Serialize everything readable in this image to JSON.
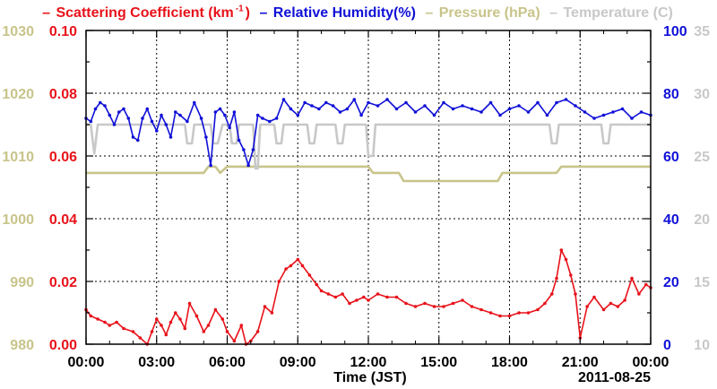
{
  "chart_data": {
    "type": "line",
    "legend": [
      {
        "label": "Scattering Coefficient (km",
        "sup": "-1",
        "tail": ")",
        "color": "#e8121a"
      },
      {
        "label": "Relative Humidity(%)",
        "color": "#1010d8"
      },
      {
        "label": "Pressure (hPa)",
        "color": "#c8c48a"
      },
      {
        "label": "Temperature (C)",
        "color": "#c8c8c8"
      }
    ],
    "xlabel": "Time (JST)",
    "date_label": "2011-08-25",
    "x_ticks": [
      "00:00",
      "03:00",
      "06:00",
      "09:00",
      "12:00",
      "15:00",
      "18:00",
      "21:00",
      "00:00"
    ],
    "xlim_hours": [
      0,
      24
    ],
    "axes": {
      "scattering": {
        "ticks": [
          "0.00",
          "0.02",
          "0.04",
          "0.06",
          "0.08",
          "0.10"
        ],
        "ylim": [
          0,
          0.1
        ],
        "color": "#e8121a"
      },
      "pressure": {
        "ticks": [
          "980",
          "990",
          "1000",
          "1010",
          "1020",
          "1030"
        ],
        "ylim": [
          980,
          1030
        ],
        "color": "#c8c48a"
      },
      "humidity": {
        "ticks": [
          "0",
          "20",
          "40",
          "60",
          "80",
          "100"
        ],
        "ylim": [
          0,
          100
        ],
        "color": "#1010d8"
      },
      "temperature": {
        "ticks": [
          "10",
          "15",
          "20",
          "25",
          "30",
          "35"
        ],
        "ylim": [
          10,
          35
        ],
        "color": "#c8c8c8"
      }
    },
    "grid": true,
    "series": [
      {
        "name": "Scattering Coefficient",
        "color": "#e8121a",
        "marker": true,
        "x": [
          0,
          0.2,
          0.5,
          0.8,
          1.0,
          1.3,
          1.6,
          2.0,
          2.3,
          2.6,
          2.8,
          3.0,
          3.2,
          3.4,
          3.6,
          3.8,
          4.0,
          4.2,
          4.4,
          4.7,
          5.0,
          5.2,
          5.5,
          5.8,
          6.0,
          6.3,
          6.6,
          6.8,
          7.0,
          7.3,
          7.6,
          7.9,
          8.2,
          8.5,
          8.7,
          9.0,
          9.2,
          9.5,
          9.8,
          10.0,
          10.3,
          10.6,
          10.9,
          11.2,
          11.5,
          11.8,
          12.0,
          12.4,
          12.8,
          13.2,
          13.6,
          14.0,
          14.4,
          14.8,
          15.2,
          15.6,
          16.0,
          16.4,
          16.8,
          17.2,
          17.6,
          18.0,
          18.4,
          18.8,
          19.2,
          19.5,
          19.8,
          20.0,
          20.2,
          20.4,
          20.6,
          20.8,
          21.0,
          21.3,
          21.6,
          22.0,
          22.3,
          22.6,
          22.9,
          23.2,
          23.5,
          23.8,
          24.0
        ],
        "y": [
          0.011,
          0.009,
          0.008,
          0.007,
          0.006,
          0.007,
          0.005,
          0.004,
          0.002,
          0.0,
          0.004,
          0.008,
          0.006,
          0.003,
          0.007,
          0.01,
          0.008,
          0.005,
          0.013,
          0.009,
          0.004,
          0.006,
          0.011,
          0.008,
          0.004,
          0.001,
          0.006,
          0.0,
          0.001,
          0.004,
          0.012,
          0.01,
          0.02,
          0.024,
          0.025,
          0.027,
          0.025,
          0.022,
          0.019,
          0.017,
          0.016,
          0.015,
          0.016,
          0.013,
          0.014,
          0.015,
          0.014,
          0.016,
          0.015,
          0.015,
          0.013,
          0.012,
          0.013,
          0.012,
          0.012,
          0.013,
          0.014,
          0.012,
          0.011,
          0.01,
          0.009,
          0.009,
          0.01,
          0.01,
          0.011,
          0.013,
          0.016,
          0.021,
          0.03,
          0.027,
          0.022,
          0.016,
          0.002,
          0.012,
          0.015,
          0.011,
          0.013,
          0.012,
          0.014,
          0.021,
          0.016,
          0.019,
          0.018
        ]
      },
      {
        "name": "Relative Humidity",
        "color": "#1010d8",
        "marker": true,
        "x": [
          0,
          0.2,
          0.4,
          0.6,
          0.8,
          1.0,
          1.2,
          1.4,
          1.6,
          1.8,
          2.0,
          2.2,
          2.4,
          2.6,
          2.8,
          3.0,
          3.2,
          3.4,
          3.6,
          3.8,
          4.0,
          4.3,
          4.6,
          4.9,
          5.1,
          5.3,
          5.5,
          5.7,
          5.9,
          6.1,
          6.3,
          6.5,
          6.7,
          6.9,
          7.1,
          7.3,
          7.5,
          7.8,
          8.1,
          8.4,
          8.7,
          9.0,
          9.3,
          9.6,
          9.9,
          10.2,
          10.5,
          10.8,
          11.1,
          11.4,
          11.7,
          12.0,
          12.4,
          12.8,
          13.2,
          13.6,
          14.0,
          14.4,
          14.8,
          15.2,
          15.6,
          16.0,
          16.4,
          16.8,
          17.2,
          17.6,
          18.0,
          18.4,
          18.8,
          19.2,
          19.6,
          20.0,
          20.4,
          20.8,
          21.2,
          21.6,
          22.0,
          22.4,
          22.8,
          23.2,
          23.6,
          24.0
        ],
        "y": [
          72,
          71,
          75,
          77,
          76,
          73,
          70,
          74,
          75,
          72,
          66,
          65,
          72,
          75,
          71,
          68,
          73,
          70,
          66,
          74,
          73,
          71,
          77,
          72,
          66,
          57,
          74,
          75,
          73,
          69,
          74,
          65,
          62,
          57,
          62,
          73,
          72,
          71,
          72,
          78,
          75,
          73,
          77,
          76,
          75,
          77,
          76,
          74,
          75,
          78,
          73,
          77,
          76,
          78,
          75,
          77,
          74,
          76,
          73,
          77,
          75,
          76,
          75,
          74,
          77,
          73,
          75,
          76,
          74,
          77,
          73,
          77,
          78,
          76,
          74,
          72,
          73,
          74,
          75,
          72,
          74,
          73
        ]
      },
      {
        "name": "Pressure",
        "color": "#c8c48a",
        "marker": false,
        "x": [
          0,
          5.0,
          5.2,
          5.5,
          5.7,
          6.0,
          12.0,
          12.2,
          13.3,
          13.5,
          17.5,
          17.7,
          20.0,
          20.2,
          24.0
        ],
        "y": [
          1007.3,
          1007.3,
          1008.3,
          1008.3,
          1007.3,
          1008.3,
          1008.3,
          1007.3,
          1007.3,
          1006.0,
          1006.0,
          1007.3,
          1007.3,
          1008.3,
          1008.3
        ]
      },
      {
        "name": "Temperature",
        "color": "#c8c8c8",
        "marker": false,
        "x": [
          0,
          0.2,
          0.35,
          0.5,
          4.2,
          4.3,
          4.5,
          4.6,
          5.3,
          5.4,
          5.6,
          5.8,
          6.1,
          6.2,
          6.4,
          6.5,
          7.1,
          7.2,
          7.3,
          7.4,
          8.0,
          8.1,
          8.3,
          8.4,
          9.4,
          9.5,
          9.7,
          9.8,
          10.6,
          10.7,
          10.9,
          11.0,
          11.9,
          12.0,
          12.2,
          12.3,
          19.7,
          19.8,
          20.0,
          20.1,
          21.9,
          22.0,
          22.2,
          22.3,
          24.0
        ],
        "y": [
          27.5,
          27.5,
          25.2,
          27.5,
          27.5,
          26.0,
          26.0,
          27.5,
          27.5,
          26.0,
          26.0,
          27.5,
          27.5,
          26.0,
          26.0,
          27.5,
          27.5,
          24.0,
          24.0,
          27.5,
          27.5,
          26.0,
          26.0,
          27.5,
          27.5,
          26.0,
          26.0,
          27.5,
          27.5,
          26.0,
          26.0,
          27.5,
          27.5,
          25.0,
          25.0,
          27.5,
          27.5,
          26.0,
          26.0,
          27.5,
          27.5,
          26.0,
          26.0,
          27.5,
          27.5
        ]
      }
    ]
  }
}
